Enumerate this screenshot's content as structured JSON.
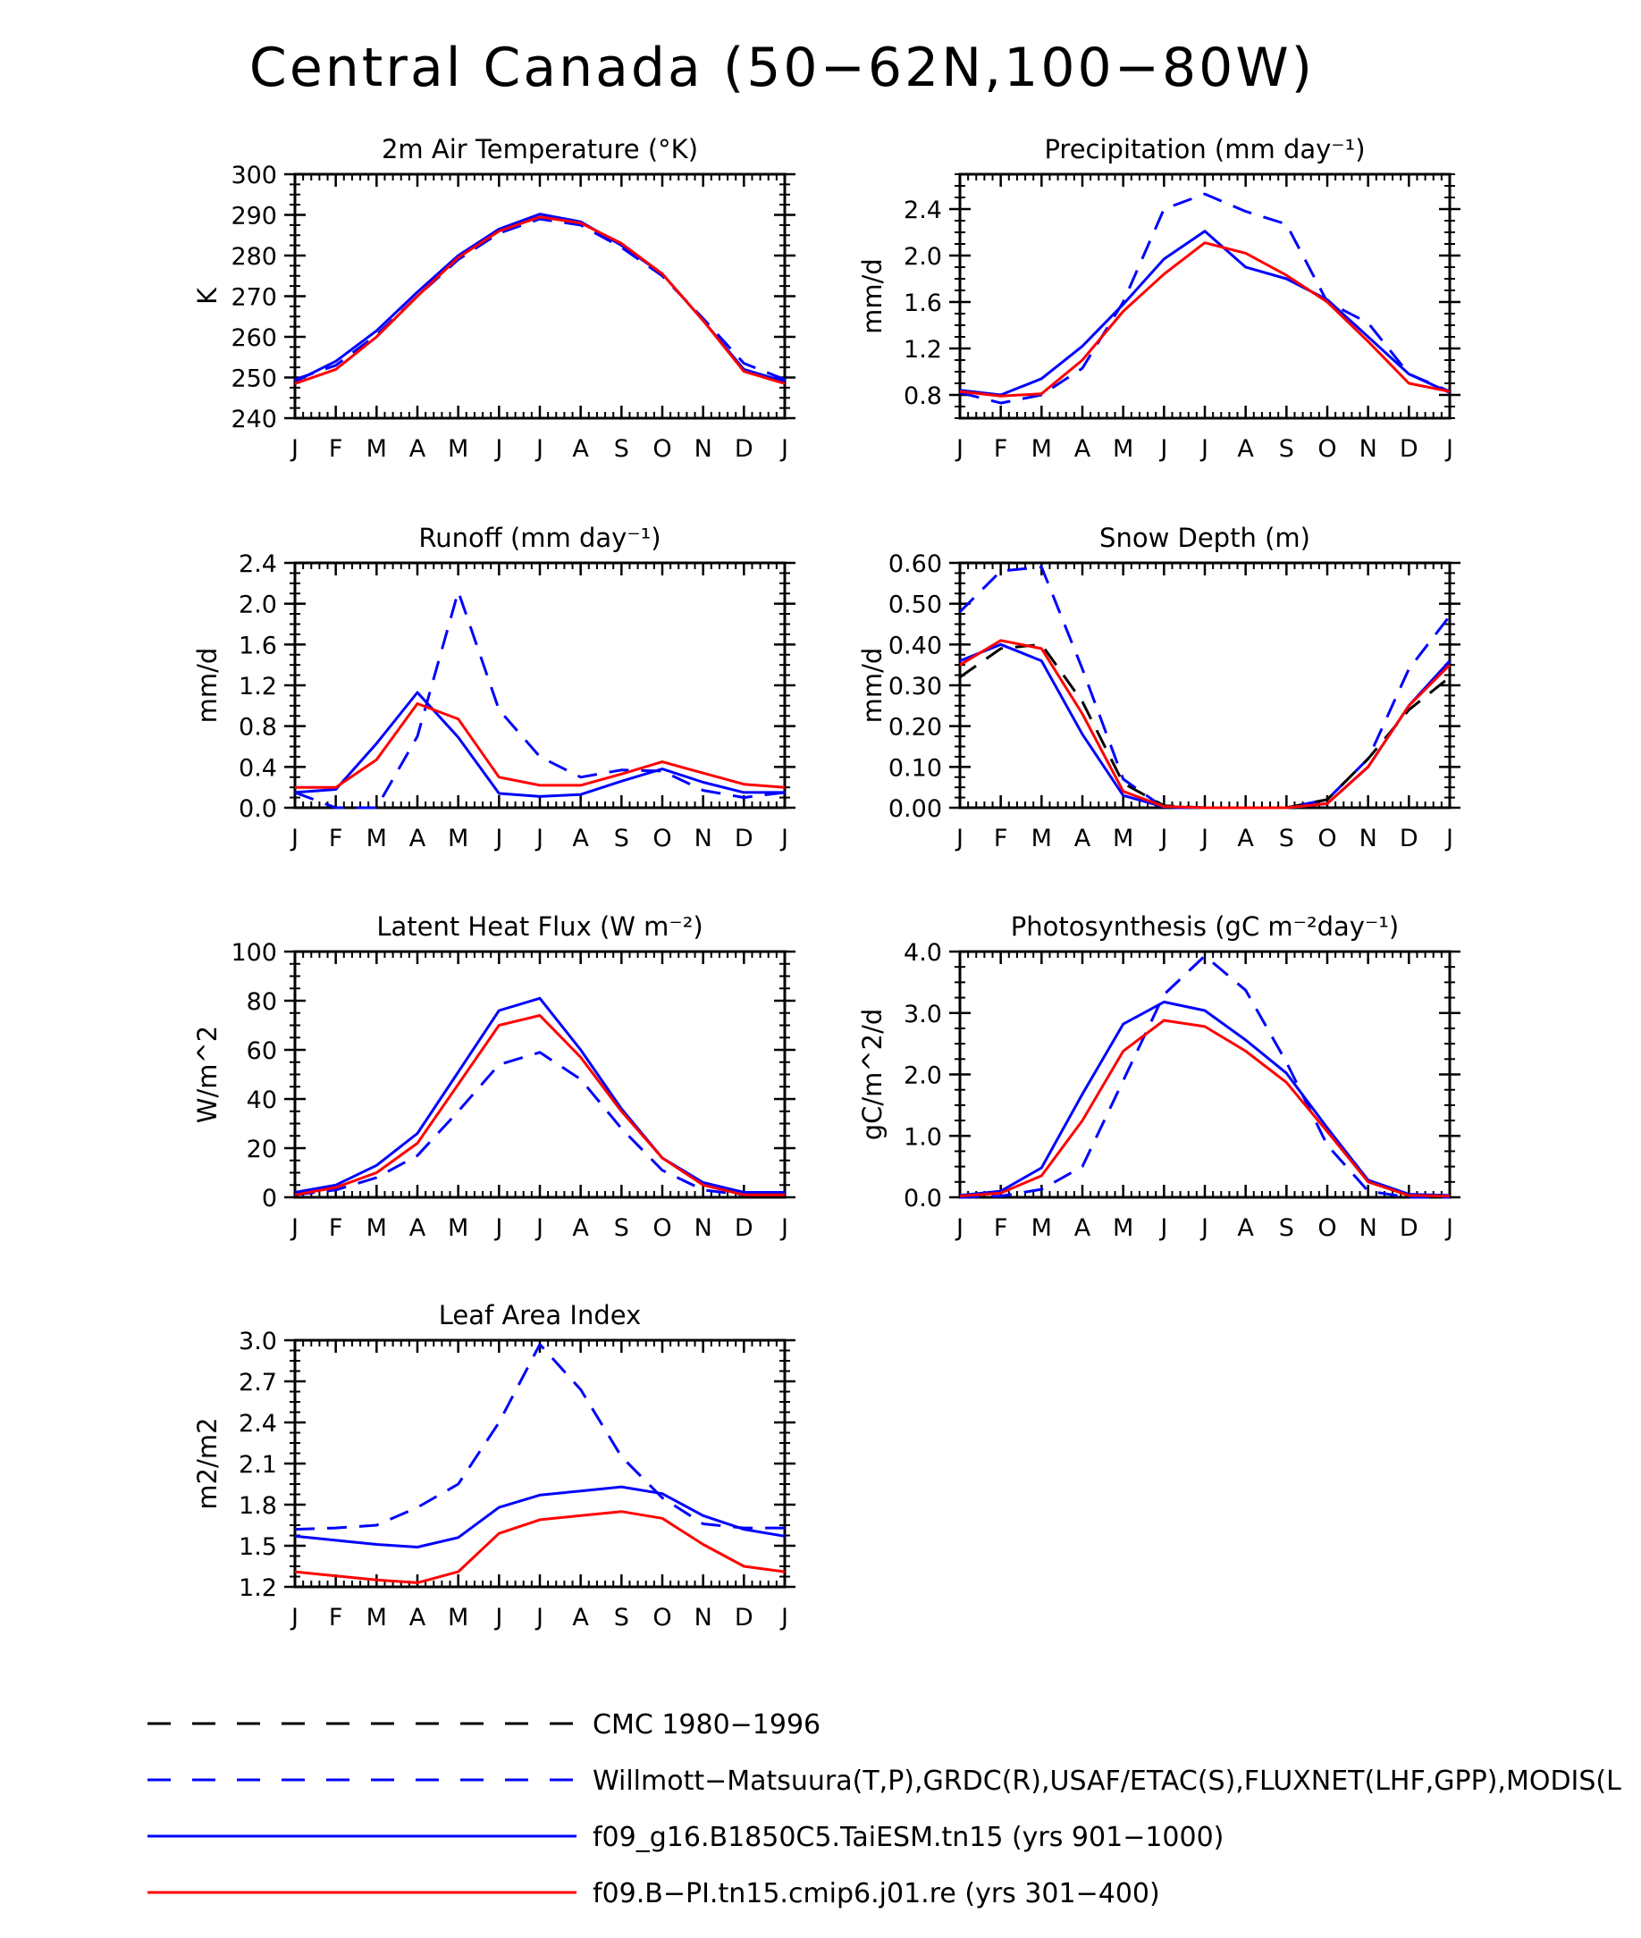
{
  "title": "Central Canada (50−62N,100−80W)",
  "colors": {
    "obs": "#0000ff",
    "model1": "#0000ff",
    "model2": "#ff0000",
    "cmc": "#000000",
    "axis": "#000000"
  },
  "legend": [
    {
      "key": "cmc",
      "label": "CMC 1980−1996",
      "color": "#000000",
      "dash": "long"
    },
    {
      "key": "obs",
      "label": "Willmott−Matsuura(T,P),GRDC(R),USAF/ETAC(S),FLUXNET(LHF,GPP),MODIS(L",
      "color": "#0000ff",
      "dash": "long"
    },
    {
      "key": "model1",
      "label": "f09_g16.B1850C5.TaiESM.tn15 (yrs 901−1000)",
      "color": "#0000ff",
      "dash": "solid"
    },
    {
      "key": "model2",
      "label": "f09.B−PI.tn15.cmip6.j01.re (yrs 301−400)",
      "color": "#ff0000",
      "dash": "solid"
    }
  ],
  "chart_data": [
    {
      "type": "line",
      "title": "2m Air Temperature (°K)",
      "ylabel": "K",
      "x": [
        "J",
        "F",
        "M",
        "A",
        "M",
        "J",
        "J",
        "A",
        "S",
        "O",
        "N",
        "D",
        "J"
      ],
      "ylim": [
        240,
        300
      ],
      "yticks": [
        240,
        250,
        260,
        270,
        280,
        290,
        300
      ],
      "ytick_labels": [
        "240",
        "250",
        "260",
        "270",
        "280",
        "290",
        "300"
      ],
      "series": [
        {
          "key": "obs",
          "values": [
            249.5,
            253,
            260.5,
            270,
            279,
            285.5,
            289,
            287.5,
            282,
            275,
            264.5,
            253.5,
            249.5
          ]
        },
        {
          "key": "model1",
          "values": [
            249,
            254,
            261.5,
            271,
            280,
            286.5,
            290.2,
            288.3,
            282.5,
            275.5,
            264,
            252,
            249
          ]
        },
        {
          "key": "model2",
          "values": [
            248.5,
            252,
            260,
            270,
            279.5,
            286,
            289.5,
            288,
            283,
            275.5,
            264,
            251.5,
            248.5
          ]
        }
      ]
    },
    {
      "type": "line",
      "title": "Precipitation (mm day⁻¹)",
      "ylabel": "mm/d",
      "x": [
        "J",
        "F",
        "M",
        "A",
        "M",
        "J",
        "J",
        "A",
        "S",
        "O",
        "N",
        "D",
        "J"
      ],
      "ylim": [
        0.6,
        2.7
      ],
      "yticks": [
        0.8,
        1.2,
        1.6,
        2.0,
        2.4
      ],
      "ytick_labels": [
        "0.8",
        "1.2",
        "1.6",
        "2.0",
        "2.4"
      ],
      "series": [
        {
          "key": "obs",
          "values": [
            0.82,
            0.73,
            0.8,
            1.03,
            1.6,
            2.4,
            2.53,
            2.38,
            2.27,
            1.6,
            1.42,
            0.98,
            0.83
          ]
        },
        {
          "key": "model1",
          "values": [
            0.84,
            0.8,
            0.94,
            1.22,
            1.58,
            1.97,
            2.21,
            1.9,
            1.8,
            1.62,
            1.3,
            0.98,
            0.82
          ]
        },
        {
          "key": "model2",
          "values": [
            0.83,
            0.79,
            0.81,
            1.1,
            1.52,
            1.84,
            2.11,
            2.02,
            1.83,
            1.6,
            1.26,
            0.9,
            0.83
          ]
        }
      ]
    },
    {
      "type": "line",
      "title": "Runoff (mm day⁻¹)",
      "ylabel": "mm/d",
      "x": [
        "J",
        "F",
        "M",
        "A",
        "M",
        "J",
        "J",
        "A",
        "S",
        "O",
        "N",
        "D",
        "J"
      ],
      "ylim": [
        0.0,
        2.4
      ],
      "yticks": [
        0.0,
        0.4,
        0.8,
        1.2,
        1.6,
        2.0,
        2.4
      ],
      "ytick_labels": [
        "0.0",
        "0.4",
        "0.8",
        "1.2",
        "1.6",
        "2.0",
        "2.4"
      ],
      "series": [
        {
          "key": "obs",
          "values": [
            0.15,
            0.0,
            0.0,
            0.7,
            2.12,
            0.96,
            0.5,
            0.3,
            0.37,
            0.36,
            0.17,
            0.1,
            0.15
          ]
        },
        {
          "key": "model1",
          "values": [
            0.15,
            0.18,
            0.63,
            1.13,
            0.69,
            0.14,
            0.11,
            0.13,
            0.26,
            0.38,
            0.25,
            0.15,
            0.15
          ]
        },
        {
          "key": "model2",
          "values": [
            0.2,
            0.2,
            0.47,
            1.02,
            0.87,
            0.3,
            0.22,
            0.22,
            0.33,
            0.45,
            0.34,
            0.23,
            0.2
          ]
        }
      ]
    },
    {
      "type": "line",
      "title": "Snow Depth (m)",
      "ylabel": "mm/d",
      "x": [
        "J",
        "F",
        "M",
        "A",
        "M",
        "J",
        "J",
        "A",
        "S",
        "O",
        "N",
        "D",
        "J"
      ],
      "ylim": [
        0.0,
        0.6
      ],
      "yticks": [
        0.0,
        0.1,
        0.2,
        0.3,
        0.4,
        0.5,
        0.6
      ],
      "ytick_labels": [
        "0.00",
        "0.10",
        "0.20",
        "0.30",
        "0.40",
        "0.50",
        "0.60"
      ],
      "series": [
        {
          "key": "obs",
          "values": [
            0.48,
            0.58,
            0.59,
            0.34,
            0.07,
            0.0,
            0.0,
            0.0,
            0.0,
            0.02,
            0.12,
            0.34,
            0.47
          ]
        },
        {
          "key": "cmc",
          "values": [
            0.32,
            0.39,
            0.4,
            0.26,
            0.06,
            0.005,
            0.0,
            0.0,
            0.0,
            0.02,
            0.12,
            0.24,
            0.32
          ]
        },
        {
          "key": "model1",
          "values": [
            0.36,
            0.4,
            0.36,
            0.18,
            0.03,
            0.002,
            0.0,
            0.0,
            0.0,
            0.01,
            0.1,
            0.25,
            0.36
          ]
        },
        {
          "key": "model2",
          "values": [
            0.35,
            0.41,
            0.39,
            0.23,
            0.04,
            0.003,
            0.0,
            0.0,
            0.0,
            0.01,
            0.1,
            0.25,
            0.35
          ]
        }
      ]
    },
    {
      "type": "line",
      "title": "Latent Heat Flux (W m⁻²)",
      "ylabel": "W/m^2",
      "x": [
        "J",
        "F",
        "M",
        "A",
        "M",
        "J",
        "J",
        "A",
        "S",
        "O",
        "N",
        "D",
        "J"
      ],
      "ylim": [
        0,
        100
      ],
      "yticks": [
        0,
        20,
        40,
        60,
        80,
        100
      ],
      "ytick_labels": [
        "0",
        "20",
        "40",
        "60",
        "80",
        "100"
      ],
      "series": [
        {
          "key": "obs",
          "values": [
            1,
            3,
            8,
            17,
            35,
            54,
            59,
            48,
            28,
            11,
            3,
            1,
            1
          ]
        },
        {
          "key": "model1",
          "values": [
            2,
            5,
            13,
            26,
            51,
            76,
            81,
            60,
            36,
            16,
            6,
            2,
            2
          ]
        },
        {
          "key": "model2",
          "values": [
            1,
            4,
            10,
            22,
            46,
            70,
            74,
            57,
            35,
            16,
            5,
            1,
            1
          ]
        }
      ]
    },
    {
      "type": "line",
      "title": "Photosynthesis (gC m⁻²day⁻¹)",
      "ylabel": "gC/m^2/d",
      "x": [
        "J",
        "F",
        "M",
        "A",
        "M",
        "J",
        "J",
        "A",
        "S",
        "O",
        "N",
        "D",
        "J"
      ],
      "ylim": [
        0.0,
        4.0
      ],
      "yticks": [
        0.0,
        1.0,
        2.0,
        3.0,
        4.0
      ],
      "ytick_labels": [
        "0.0",
        "1.0",
        "2.0",
        "3.0",
        "4.0"
      ],
      "series": [
        {
          "key": "obs",
          "values": [
            0.0,
            0.02,
            0.13,
            0.5,
            1.9,
            3.3,
            3.93,
            3.37,
            2.2,
            0.85,
            0.1,
            0.0,
            0.0
          ]
        },
        {
          "key": "model1",
          "values": [
            0.03,
            0.1,
            0.48,
            1.68,
            2.82,
            3.18,
            3.04,
            2.56,
            2.02,
            1.13,
            0.28,
            0.05,
            0.03
          ]
        },
        {
          "key": "model2",
          "values": [
            0.02,
            0.07,
            0.35,
            1.25,
            2.38,
            2.88,
            2.78,
            2.38,
            1.87,
            1.07,
            0.25,
            0.03,
            0.02
          ]
        }
      ]
    },
    {
      "type": "line",
      "title": "Leaf Area Index",
      "ylabel": "m2/m2",
      "x": [
        "J",
        "F",
        "M",
        "A",
        "M",
        "J",
        "J",
        "A",
        "S",
        "O",
        "N",
        "D",
        "J"
      ],
      "ylim": [
        1.2,
        3.0
      ],
      "yticks": [
        1.2,
        1.5,
        1.8,
        2.1,
        2.4,
        2.7,
        3.0
      ],
      "ytick_labels": [
        "1.2",
        "1.5",
        "1.8",
        "2.1",
        "2.4",
        "2.7",
        "3.0"
      ],
      "series": [
        {
          "key": "obs",
          "values": [
            1.62,
            1.63,
            1.65,
            1.78,
            1.95,
            2.4,
            2.97,
            2.64,
            2.15,
            1.85,
            1.66,
            1.63,
            1.63
          ]
        },
        {
          "key": "model1",
          "values": [
            1.57,
            1.54,
            1.51,
            1.49,
            1.56,
            1.78,
            1.87,
            1.9,
            1.93,
            1.88,
            1.72,
            1.62,
            1.57
          ]
        },
        {
          "key": "model2",
          "values": [
            1.31,
            1.28,
            1.25,
            1.23,
            1.31,
            1.59,
            1.69,
            1.72,
            1.75,
            1.7,
            1.51,
            1.35,
            1.31
          ]
        }
      ]
    }
  ]
}
